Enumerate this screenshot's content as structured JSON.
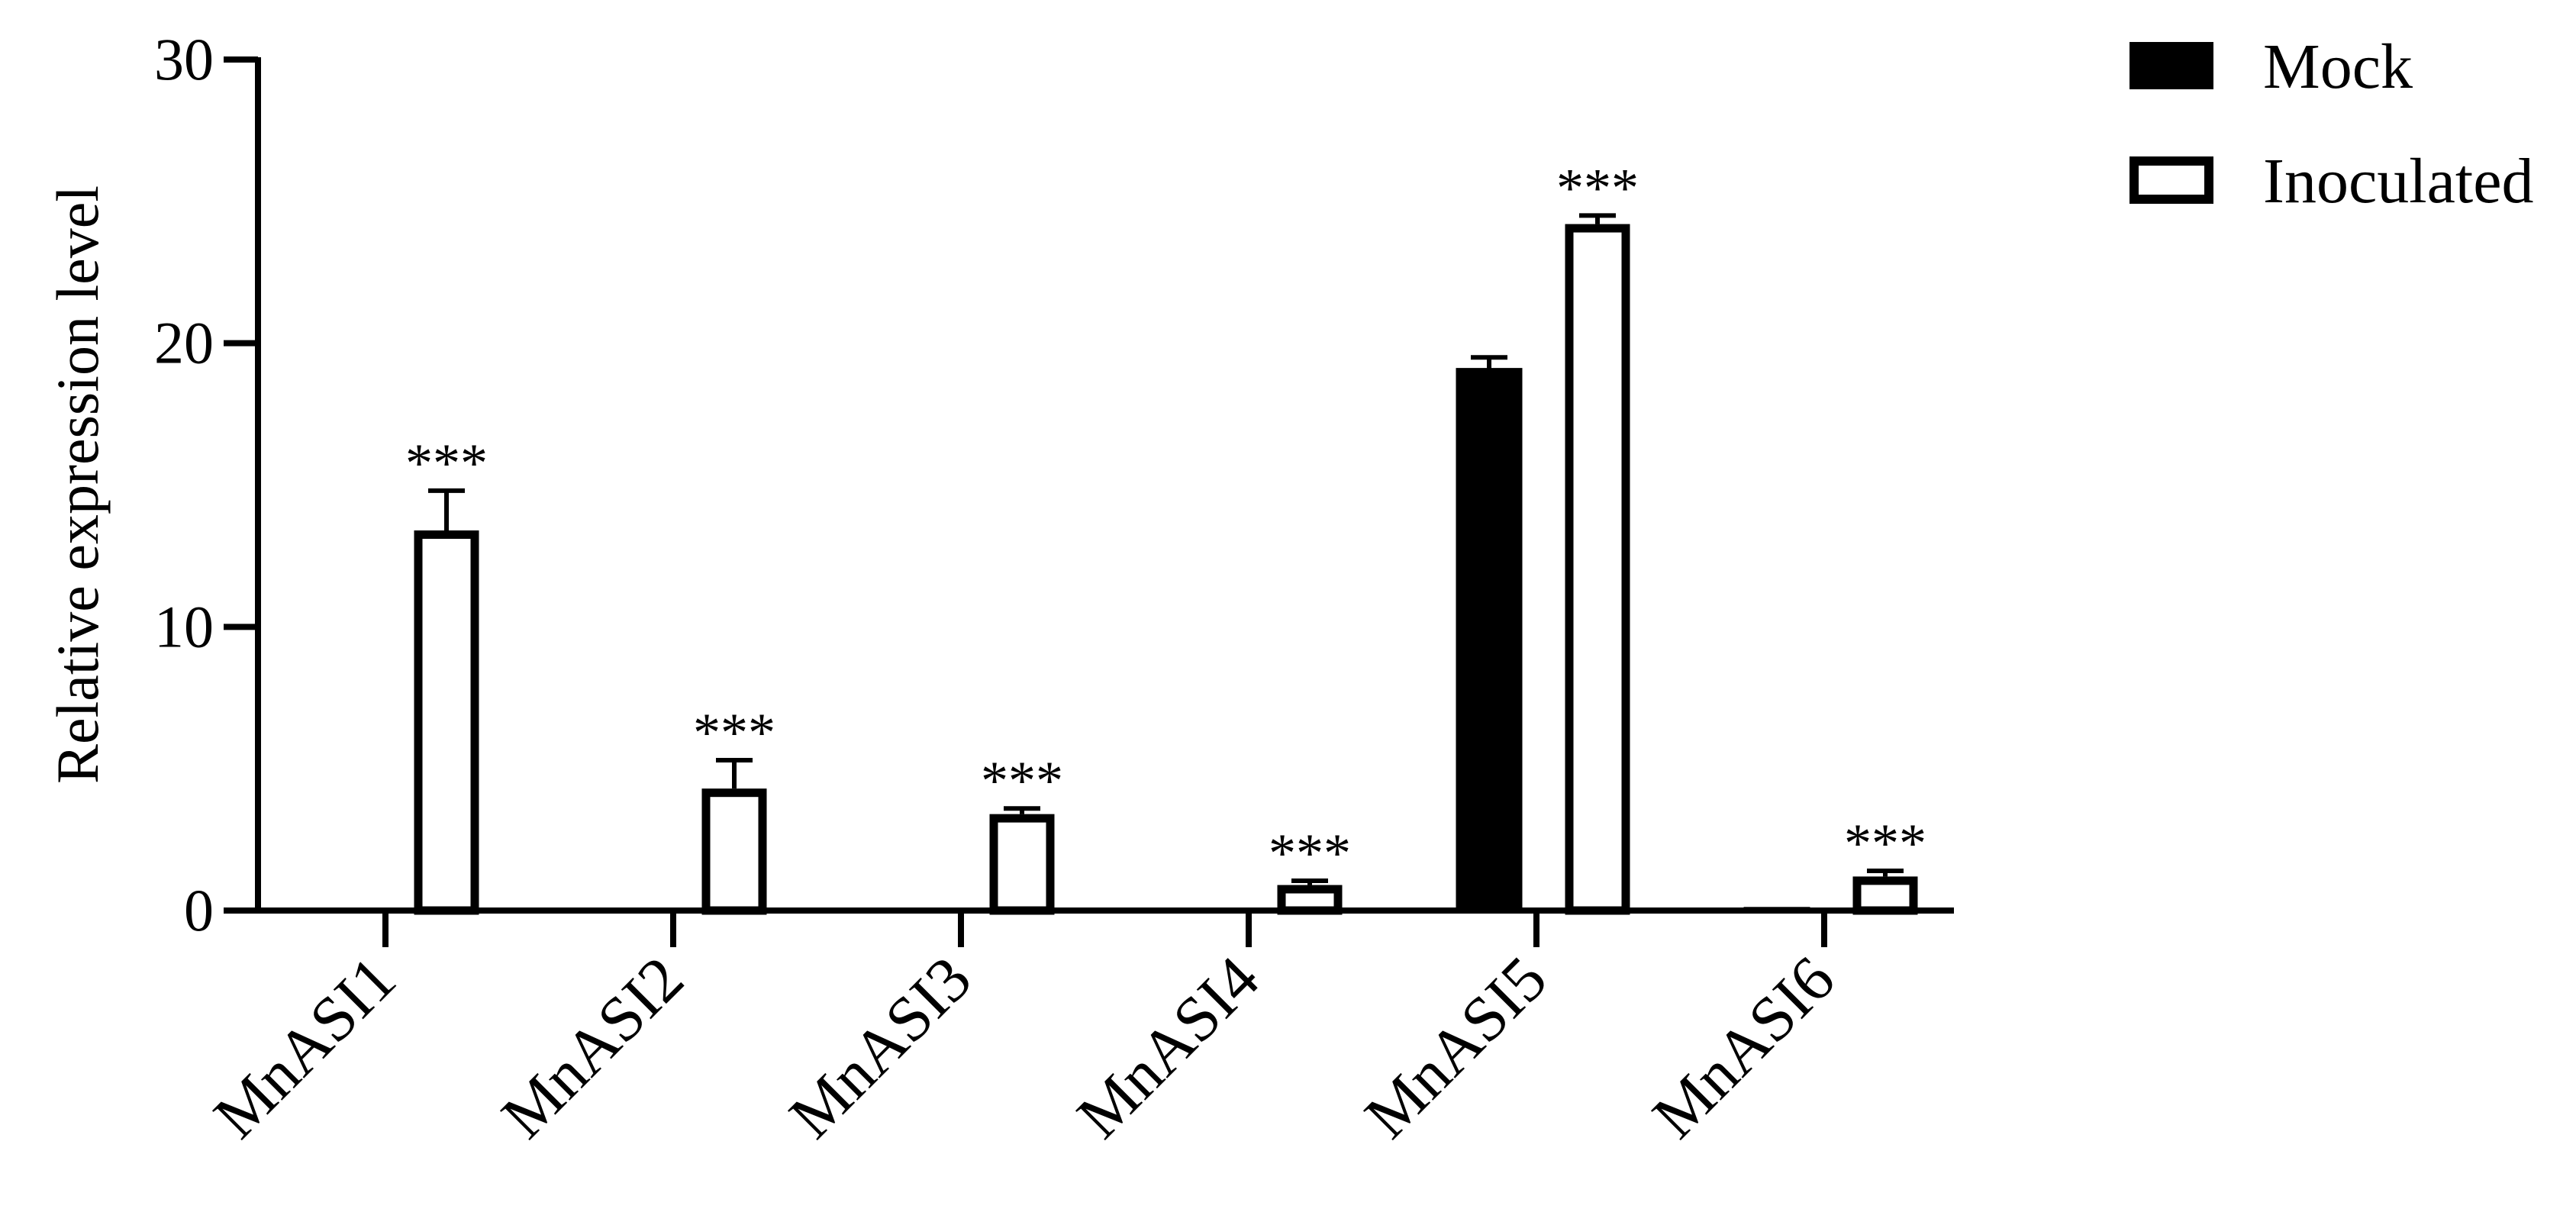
{
  "chart_data": {
    "type": "bar",
    "title": "",
    "xlabel": "",
    "ylabel": "Relative expression level",
    "ylim": [
      0,
      30
    ],
    "yticks": [
      0,
      10,
      20,
      30
    ],
    "categories": [
      "MnASI1",
      "MnASI2",
      "MnASI3",
      "MnASI4",
      "MnASI5",
      "MnASI6"
    ],
    "series": [
      {
        "name": "Mock",
        "fill": "#000000",
        "values": [
          0.02,
          0.02,
          0.08,
          0.07,
          19.1,
          0.1
        ],
        "errors": [
          0.01,
          0.01,
          0.02,
          0.02,
          0.4,
          0.03
        ]
      },
      {
        "name": "Inoculated",
        "fill": "#ffffff",
        "values": [
          13.4,
          4.3,
          3.4,
          0.9,
          24.2,
          1.2
        ],
        "errors": [
          1.4,
          1.0,
          0.2,
          0.15,
          0.3,
          0.2
        ]
      }
    ],
    "annotations": [
      "***",
      "***",
      "***",
      "***",
      "***",
      "***"
    ],
    "legend_position": "top-right",
    "grid": false
  },
  "colors": {
    "axis": "#000000",
    "mock": "#000000",
    "inoculated": "#ffffff"
  }
}
